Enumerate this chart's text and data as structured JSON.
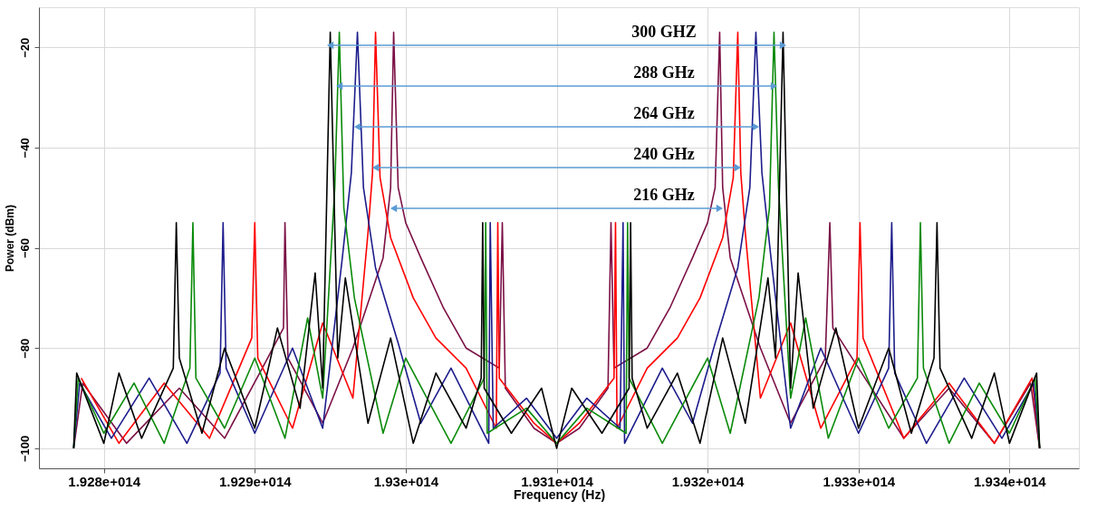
{
  "chart_data": {
    "type": "line",
    "xlabel": "Frequency (Hz)",
    "ylabel": "Power (dBm)",
    "xlim": [
      192757000000000.0,
      193446000000000.0
    ],
    "ylim": [
      -104,
      -12
    ],
    "xticks": [
      {
        "value": 192800000000000.0,
        "label": "1.928e+014"
      },
      {
        "value": 192900000000000.0,
        "label": "1.929e+014"
      },
      {
        "value": 193000000000000.0,
        "label": "1.93e+014"
      },
      {
        "value": 193100000000000.0,
        "label": "1.931e+014"
      },
      {
        "value": 193200000000000.0,
        "label": "1.932e+014"
      },
      {
        "value": 193300000000000.0,
        "label": "1.933e+014"
      },
      {
        "value": 193400000000000.0,
        "label": "1.934e+014"
      }
    ],
    "yticks": [
      -100,
      -80,
      -60,
      -40,
      -20
    ],
    "grid": true,
    "series": [
      {
        "color": "#7b1045",
        "x": [
          192780000000000.0,
          192786000000000.0,
          192815000000000.0,
          192850000000000.0,
          192880000000000.0,
          192905000000000.0,
          192919000000000.0,
          192920000000000.0,
          192922000000000.0,
          192945000000000.0,
          192965000000000.0,
          192985000000000.0,
          192990000000000.0,
          192992000000000.0,
          192995000000000.0,
          193000000000000.0,
          193010000000000.0,
          193025000000000.0,
          193040000000000.0,
          193062000000000.0,
          193064000000000.0,
          193066000000000.0,
          193085000000000.0,
          193100000000000.0,
          193115000000000.0,
          193134000000000.0,
          193136000000000.0,
          193138000000000.0,
          193160000000000.0,
          193175000000000.0,
          193190000000000.0,
          193200000000000.0,
          193205000000000.0,
          193208000000000.0,
          193210000000000.0,
          193215000000000.0,
          193235000000000.0,
          193255000000000.0,
          193278000000000.0,
          193281000000000.0,
          193283000000000.0,
          193300000000000.0,
          193330000000000.0,
          193360000000000.0,
          193390000000000.0,
          193414000000000.0,
          193420000000000.0
        ],
        "values": [
          -100,
          -87,
          -99,
          -88,
          -98,
          -84,
          -76,
          -55,
          -82,
          -95,
          -80,
          -62,
          -48,
          -17,
          -48,
          -55,
          -62,
          -72,
          -80,
          -84,
          -55,
          -88,
          -96,
          -99,
          -96,
          -88,
          -55,
          -84,
          -80,
          -72,
          -62,
          -55,
          -48,
          -17,
          -48,
          -62,
          -80,
          -95,
          -82,
          -55,
          -76,
          -84,
          -98,
          -88,
          -99,
          -87,
          -100
        ]
      },
      {
        "color": "#ff0000",
        "x": [
          192785000000000.0,
          192810000000000.0,
          192840000000000.0,
          192870000000000.0,
          192898000000000.0,
          192900000000000.0,
          192902000000000.0,
          192925000000000.0,
          192945000000000.0,
          192965000000000.0,
          192975000000000.0,
          192978000000000.0,
          192980000000000.0,
          192983000000000.0,
          192990000000000.0,
          193005000000000.0,
          193020000000000.0,
          193040000000000.0,
          193060000000000.0,
          193061000000000.0,
          193062000000000.0,
          193085000000000.0,
          193100000000000.0,
          193115000000000.0,
          193138000000000.0,
          193139000000000.0,
          193140000000000.0,
          193160000000000.0,
          193180000000000.0,
          193195000000000.0,
          193210000000000.0,
          193217000000000.0,
          193220000000000.0,
          193222000000000.0,
          193225000000000.0,
          193235000000000.0,
          193255000000000.0,
          193275000000000.0,
          193299000000000.0,
          193301000000000.0,
          193303000000000.0,
          193330000000000.0,
          193360000000000.0,
          193390000000000.0,
          193415000000000.0,
          193420000000000.0
        ],
        "values": [
          -86,
          -99,
          -87,
          -98,
          -78,
          -55,
          -82,
          -96,
          -75,
          -90,
          -57,
          -45,
          -17,
          -46,
          -58,
          -70,
          -78,
          -84,
          -96,
          -55,
          -86,
          -95,
          -99,
          -95,
          -86,
          -55,
          -96,
          -84,
          -78,
          -70,
          -58,
          -46,
          -17,
          -45,
          -57,
          -90,
          -75,
          -96,
          -82,
          -55,
          -78,
          -98,
          -87,
          -99,
          -86,
          -100
        ]
      },
      {
        "color": "#1c1c8c",
        "x": [
          192780000000000.0,
          192784000000000.0,
          192805000000000.0,
          192830000000000.0,
          192855000000000.0,
          192877000000000.0,
          192879000000000.0,
          192881000000000.0,
          192900000000000.0,
          192925000000000.0,
          192945000000000.0,
          192958000000000.0,
          192964000000000.0,
          192968000000000.0,
          192972000000000.0,
          192980000000000.0,
          192995000000000.0,
          193010000000000.0,
          193030000000000.0,
          193055000000000.0,
          193056000000000.0,
          193058000000000.0,
          193080000000000.0,
          193100000000000.0,
          193120000000000.0,
          193142000000000.0,
          193144000000000.0,
          193145000000000.0,
          193170000000000.0,
          193190000000000.0,
          193205000000000.0,
          193220000000000.0,
          193228000000000.0,
          193232000000000.0,
          193236000000000.0,
          193242000000000.0,
          193255000000000.0,
          193275000000000.0,
          193300000000000.0,
          193320000000000.0,
          193322000000000.0,
          193324000000000.0,
          193345000000000.0,
          193370000000000.0,
          193395000000000.0,
          193416000000000.0,
          193420000000000.0
        ],
        "values": [
          -100,
          -87,
          -98,
          -86,
          -99,
          -85,
          -55,
          -84,
          -97,
          -80,
          -96,
          -62,
          -45,
          -17,
          -48,
          -64,
          -79,
          -95,
          -84,
          -99,
          -55,
          -96,
          -90,
          -98,
          -90,
          -96,
          -55,
          -99,
          -84,
          -95,
          -79,
          -64,
          -48,
          -17,
          -45,
          -62,
          -96,
          -80,
          -97,
          -84,
          -55,
          -85,
          -99,
          -86,
          -98,
          -87,
          -100
        ]
      },
      {
        "color": "#0a8a0a",
        "x": [
          192780000000000.0,
          192783000000000.0,
          192800000000000.0,
          192820000000000.0,
          192840000000000.0,
          192857000000000.0,
          192859000000000.0,
          192861000000000.0,
          192880000000000.0,
          192900000000000.0,
          192920000000000.0,
          192935000000000.0,
          192945000000000.0,
          192953000000000.0,
          192956000000000.0,
          192959000000000.0,
          192966000000000.0,
          192985000000000.0,
          193000000000000.0,
          193030000000000.0,
          193052000000000.0,
          193053000000000.0,
          193054000000000.0,
          193080000000000.0,
          193100000000000.0,
          193120000000000.0,
          193146000000000.0,
          193147000000000.0,
          193148000000000.0,
          193170000000000.0,
          193200000000000.0,
          193215000000000.0,
          193234000000000.0,
          193241000000000.0,
          193244000000000.0,
          193247000000000.0,
          193255000000000.0,
          193265000000000.0,
          193280000000000.0,
          193300000000000.0,
          193320000000000.0,
          193339000000000.0,
          193341000000000.0,
          193343000000000.0,
          193360000000000.0,
          193380000000000.0,
          193400000000000.0,
          193417000000000.0,
          193420000000000.0
        ],
        "values": [
          -100,
          -86,
          -97,
          -87,
          -99,
          -84,
          -55,
          -86,
          -96,
          -82,
          -98,
          -74,
          -90,
          -48,
          -17,
          -52,
          -70,
          -97,
          -82,
          -99,
          -86,
          -55,
          -97,
          -92,
          -99,
          -92,
          -97,
          -55,
          -86,
          -99,
          -82,
          -97,
          -70,
          -52,
          -17,
          -48,
          -90,
          -74,
          -98,
          -82,
          -96,
          -86,
          -55,
          -84,
          -99,
          -87,
          -97,
          -86,
          -100
        ]
      },
      {
        "color": "#000000",
        "x": [
          192780000000000.0,
          192782000000000.0,
          192800000000000.0,
          192810000000000.0,
          192825000000000.0,
          192846000000000.0,
          192848000000000.0,
          192850000000000.0,
          192865000000000.0,
          192880000000000.0,
          192900000000000.0,
          192915000000000.0,
          192930000000000.0,
          192940000000000.0,
          192945000000000.0,
          192950000000000.0,
          192955000000000.0,
          192960000000000.0,
          192975000000000.0,
          192990000000000.0,
          193005000000000.0,
          193020000000000.0,
          193040000000000.0,
          193050000000000.0,
          193051000000000.0,
          193052000000000.0,
          193070000000000.0,
          193090000000000.0,
          193100000000000.0,
          193110000000000.0,
          193130000000000.0,
          193148000000000.0,
          193149000000000.0,
          193150000000000.0,
          193160000000000.0,
          193180000000000.0,
          193195000000000.0,
          193210000000000.0,
          193225000000000.0,
          193240000000000.0,
          193245000000000.0,
          193250000000000.0,
          193255000000000.0,
          193260000000000.0,
          193270000000000.0,
          193285000000000.0,
          193300000000000.0,
          193320000000000.0,
          193335000000000.0,
          193350000000000.0,
          193352000000000.0,
          193354000000000.0,
          193375000000000.0,
          193390000000000.0,
          193400000000000.0,
          193418000000000.0,
          193420000000000.0
        ],
        "values": [
          -100,
          -85,
          -99,
          -85,
          -98,
          -84,
          -55,
          -82,
          -97,
          -80,
          -96,
          -76,
          -92,
          -65,
          -88,
          -17,
          -82,
          -66,
          -95,
          -78,
          -99,
          -85,
          -96,
          -86,
          -55,
          -88,
          -97,
          -88,
          -100,
          -88,
          -97,
          -88,
          -55,
          -86,
          -96,
          -85,
          -99,
          -78,
          -95,
          -66,
          -82,
          -17,
          -88,
          -65,
          -92,
          -76,
          -96,
          -80,
          -97,
          -82,
          -55,
          -84,
          -98,
          -85,
          -99,
          -85,
          -100
        ]
      }
    ],
    "annotations": [
      "300 GHZ",
      "288 GHz",
      "264 GHz",
      "240 GHz",
      "216 GHz"
    ]
  }
}
